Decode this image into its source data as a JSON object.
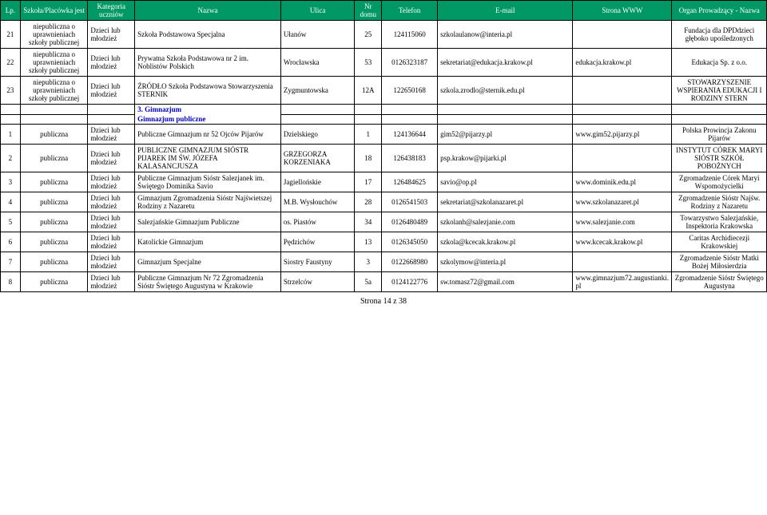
{
  "header": {
    "lp": "Lp.",
    "szkola": "Szkoła/Placówka jest",
    "kategoria": "Kategoria uczniów",
    "nazwa": "Nazwa",
    "ulica": "Ulica",
    "nr": "Nr domu",
    "telefon": "Telefon",
    "email": "E-mail",
    "www": "Strona WWW",
    "organ": "Organ Prowadzący - Nazwa"
  },
  "rows": [
    {
      "lp": "21",
      "szkola": "niepubliczna o uprawnieniach szkoły publicznej",
      "kat": "Dzieci lub młodzież",
      "nazwa": "Szkoła Podstawowa Specjalna",
      "ulica": "Ułanów",
      "nr": "25",
      "tel": "124115060",
      "email": "szkolaulanow@interia.pl",
      "www": "",
      "organ": "Fundacja dla DPDdzieci głęboko upośledzonych"
    },
    {
      "lp": "22",
      "szkola": "niepubliczna o uprawnieniach szkoły publicznej",
      "kat": "Dzieci lub młodzież",
      "nazwa": "Prywatna Szkoła Podstawowa nr 2 im. Noblistów Polskich",
      "ulica": "Wrocławska",
      "nr": "53",
      "tel": "0126323187",
      "email": "sekretariat@edukacja.krakow.pl",
      "www": "edukacja.krakow.pl",
      "organ": "Edukacja Sp. z o.o."
    },
    {
      "lp": "23",
      "szkola": "niepubliczna o uprawnieniach szkoły publicznej",
      "kat": "Dzieci lub młodzież",
      "nazwa": "ŹRÓDŁO Szkoła Podstawowa Stowarzyszenia STERNIK",
      "ulica": "Zygmuntowska",
      "nr": "12A",
      "tel": "122650168",
      "email": "szkola.zrodlo@sternik.edu.pl",
      "www": "",
      "organ": "STOWARZYSZENIE WSPIERANIA EDUKACJI I RODZINY STERN"
    }
  ],
  "section1": "3. Gimnazjum",
  "section2": "Gimnazjum publiczne",
  "rows2": [
    {
      "lp": "1",
      "szkola": "publiczna",
      "kat": "Dzieci lub młodzież",
      "nazwa": "Publiczne Gimnazjum nr 52 Ojców Pijarów",
      "ulica": "Dzielskiego",
      "nr": "1",
      "tel": "124136644",
      "email": "gim52@pijarzy.pl",
      "www": "www.gim52.pijarzy.pl",
      "organ": "Polska Prowincja Zakonu Pijarów"
    },
    {
      "lp": "2",
      "szkola": "publiczna",
      "kat": "Dzieci lub młodzież",
      "nazwa": "PUBLICZNE GIMNAZJUM SIÓSTR PIJAREK IM ŚW. JÓZEFA KALASANCJUSZA",
      "ulica": "GRZEGORZA KORZENIAKA",
      "nr": "18",
      "tel": "126438183",
      "email": "psp.krakow@pijarki.pl",
      "www": "",
      "organ": "INSTYTUT CÓREK MARYI SIÓSTR SZKÓŁ POBOŻNYCH"
    },
    {
      "lp": "3",
      "szkola": "publiczna",
      "kat": "Dzieci lub młodzież",
      "nazwa": "Publiczne Gimnazjum Sióstr Salezjanek im. Świętego Dominika Savio",
      "ulica": "Jagiellońskie",
      "nr": "17",
      "tel": "126484625",
      "email": "savio@op.pl",
      "www": "www.dominik.edu.pl",
      "organ": "Zgromadzenie Córek Maryi Wspomożycielki"
    },
    {
      "lp": "4",
      "szkola": "publiczna",
      "kat": "Dzieci lub młodzież",
      "nazwa": "Gimnazjum Zgromadzenia Sióstr Najświetszej Rodziny z Nazaretu",
      "ulica": "M.B. Wysłouchów",
      "nr": "28",
      "tel": "0126541503",
      "email": "sekretariat@szkolanazaret.pl",
      "www": "www.szkolanazaret.pl",
      "organ": "Zgromadzenie Sióstr Najśw. Rodziny z Nazaretu"
    },
    {
      "lp": "5",
      "szkola": "publiczna",
      "kat": "Dzieci lub młodzież",
      "nazwa": "Salezjańskie Gimnazjum Publiczne",
      "ulica": "os. Piastów",
      "nr": "34",
      "tel": "0126480489",
      "email": "szkolanh@salezjanie.com",
      "www": "www.salezjanie.com",
      "organ": "Towarzystwo Salezjańskie, Inspektoria Krakowska"
    },
    {
      "lp": "6",
      "szkola": "publiczna",
      "kat": "Dzieci lub młodzież",
      "nazwa": "Katolickie Gimnazjum",
      "ulica": "Pędzichów",
      "nr": "13",
      "tel": "0126345050",
      "email": "szkola@kcecak.krakow.pl",
      "www": "www.kcecak.krakow.pl",
      "organ": "Caritas Archidiecezji Krakowskiej"
    },
    {
      "lp": "7",
      "szkola": "publiczna",
      "kat": "Dzieci lub młodzież",
      "nazwa": "Gimnazjum Specjalne",
      "ulica": "Siostry Faustyny",
      "nr": "3",
      "tel": "0122668980",
      "email": "szkolymow@interia.pl",
      "www": "",
      "organ": "Zgromadzenie Sióstr Matki Bożej Miłosierdzia"
    },
    {
      "lp": "8",
      "szkola": "publiczna",
      "kat": "Dzieci lub młodzież",
      "nazwa": "Publiczne Gimnazjum Nr 72 Zgromadzenia Sióstr Świętego Augustyna w Krakowie",
      "ulica": "Strzelców",
      "nr": "5a",
      "tel": "0124122776",
      "email": "sw.tomasz72@gmail.com",
      "www": "www.gimnazjum72.augustianki.pl",
      "organ": "Zgromadzenie Sióstr Świętego Augustyna"
    }
  ],
  "footer": "Strona 14 z 38"
}
